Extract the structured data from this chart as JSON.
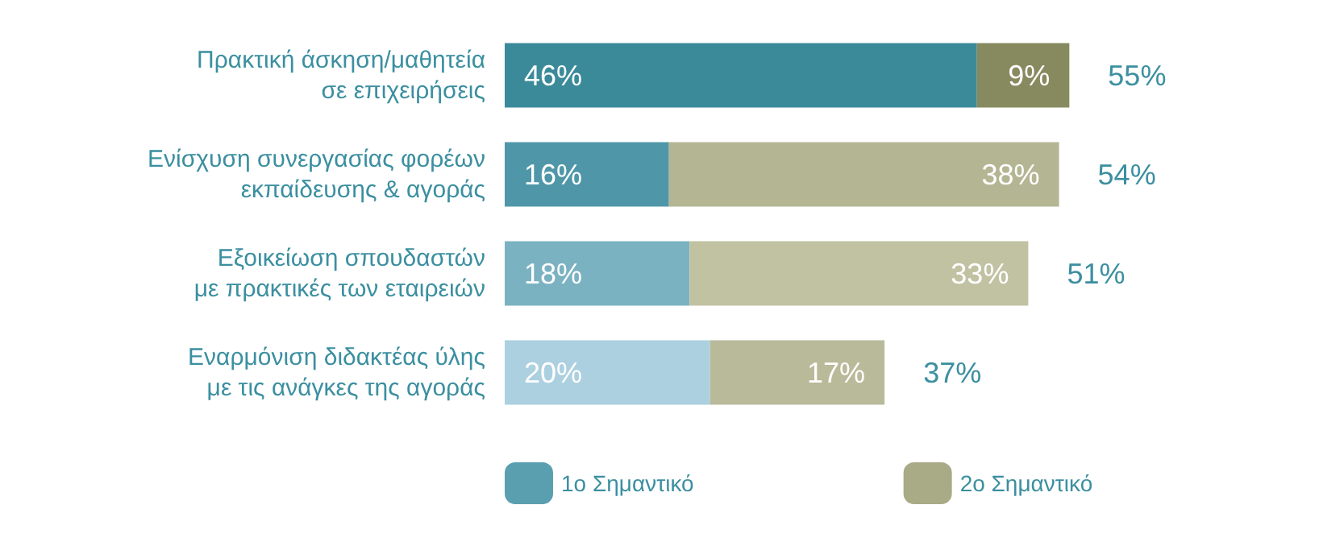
{
  "chart_data": {
    "type": "bar",
    "orientation": "horizontal",
    "stacked": true,
    "data_labels": true,
    "legend": "bottom",
    "grid": false,
    "categories": [
      "Πρακτική άσκηση/μαθητεία\nσε επιχειρήσεις",
      "Ενίσχυση συνεργασίας φορέων\nεκπαίδευσης & αγοράς",
      "Εξοικείωση σπουδαστών\nμε πρακτικές των εταιρειών",
      "Εναρμόνιση διδακτέας ύλης\nμε τις ανάγκες της αγοράς"
    ],
    "series": [
      {
        "name": "1ο Σημαντικό",
        "color": "#5a9fb0",
        "colors": [
          "#3b8a9a",
          "#4f97a8",
          "#7bb2c2",
          "#acd0e0"
        ],
        "values": [
          46,
          16,
          18,
          20
        ],
        "value_labels": [
          "46%",
          "16%",
          "18%",
          "20%"
        ]
      },
      {
        "name": "2ο Σημαντικό",
        "color": "#a9aa86",
        "colors": [
          "#878a5f",
          "#b4b693",
          "#c0c2a2",
          "#b9ba9a"
        ],
        "values": [
          9,
          38,
          33,
          17
        ],
        "value_labels": [
          "9%",
          "38%",
          "33%",
          "17%"
        ]
      }
    ],
    "totals": [
      "55%",
      "54%",
      "51%",
      "37%"
    ]
  }
}
